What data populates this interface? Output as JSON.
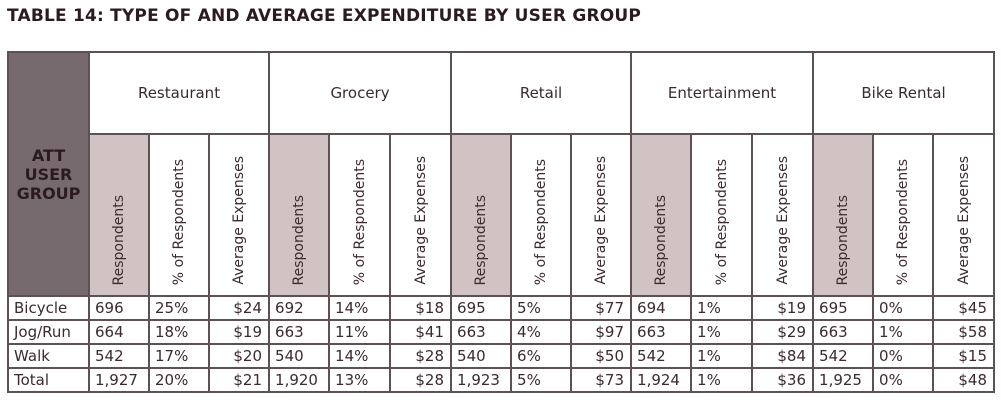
{
  "title": "TABLE 14: TYPE OF AND AVERAGE EXPENDITURE BY USER GROUP",
  "group_header": [
    "ATT",
    "USER",
    "GROUP"
  ],
  "categories": [
    "Restaurant",
    "Grocery",
    "Retail",
    "Entertainment",
    "Bike Rental"
  ],
  "sub_headers": [
    "Respondents",
    "% of Respondents",
    "Average Expenses"
  ],
  "rows": [
    {
      "group": "Bicycle",
      "values": [
        "696",
        "25%",
        "$24",
        "692",
        "14%",
        "$18",
        "695",
        "5%",
        "$77",
        "694",
        "1%",
        "$19",
        "695",
        "0%",
        "$45"
      ]
    },
    {
      "group": "Jog/Run",
      "values": [
        "664",
        "18%",
        "$19",
        "663",
        "11%",
        "$41",
        "663",
        "4%",
        "$97",
        "663",
        "1%",
        "$29",
        "663",
        "1%",
        "$58"
      ]
    },
    {
      "group": "Walk",
      "values": [
        "542",
        "17%",
        "$20",
        "540",
        "14%",
        "$28",
        "540",
        "6%",
        "$50",
        "542",
        "1%",
        "$84",
        "542",
        "0%",
        "$15"
      ]
    },
    {
      "group": "Total",
      "values": [
        "1,927",
        "20%",
        "$21",
        "1,920",
        "13%",
        "$28",
        "1,923",
        "5%",
        "$73",
        "1,924",
        "1%",
        "$36",
        "1,925",
        "0%",
        "$48"
      ]
    }
  ],
  "colors": {
    "group_bg": "#776a6e",
    "shade_bg": "#d1c3c3",
    "border": "#5e5155"
  }
}
